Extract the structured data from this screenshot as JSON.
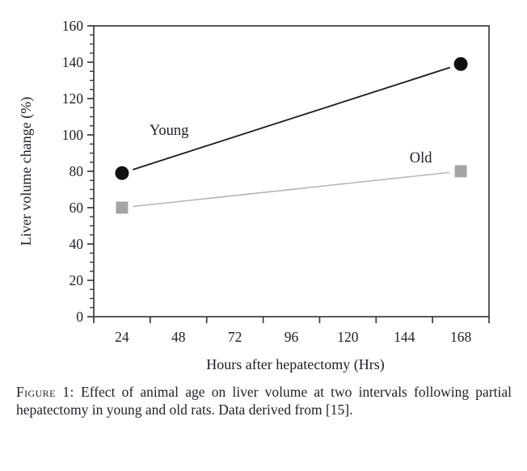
{
  "chart_data": {
    "type": "line",
    "title": "",
    "xlabel": "Hours after hepatectomy (Hrs)",
    "ylabel": "Liver volume change (%)",
    "x": [
      24,
      168
    ],
    "series": [
      {
        "name": "Young",
        "values": [
          79,
          139
        ],
        "marker": "circle",
        "marker_color": "#111111",
        "line_color": "#1a1a1a",
        "label_pos": {
          "x": 44,
          "y": 100
        }
      },
      {
        "name": "Old",
        "values": [
          60,
          80
        ],
        "marker": "square",
        "marker_color": "#a5a5a5",
        "line_color": "#b4b4b4",
        "label_pos": {
          "x": 151,
          "y": 85
        }
      }
    ],
    "xlim": [
      12,
      180
    ],
    "ylim": [
      0,
      160
    ],
    "x_ticks": [
      12,
      36,
      60,
      84,
      108,
      132,
      156,
      180
    ],
    "x_tick_labels": [
      "24",
      "48",
      "72",
      "96",
      "120",
      "144",
      "168"
    ],
    "x_tick_label_positions": [
      24,
      48,
      72,
      96,
      120,
      144,
      168
    ],
    "y_major_step": 20,
    "y_minor_step": 5,
    "y_tick_labels": [
      "0",
      "20",
      "40",
      "60",
      "80",
      "100",
      "120",
      "140",
      "160"
    ],
    "grid": false,
    "legend": "inline-annotations",
    "frame": "full-box"
  },
  "colors": {
    "axis": "#3c3c3c",
    "tick_text": "#20202a",
    "annotation_text": "#1e1e28",
    "background": "#ffffff"
  },
  "caption": {
    "label": "Figure 1:",
    "text": " Effect of animal age on liver volume at two intervals following partial hepatectomy in young and old rats. Data derived from [15]."
  }
}
